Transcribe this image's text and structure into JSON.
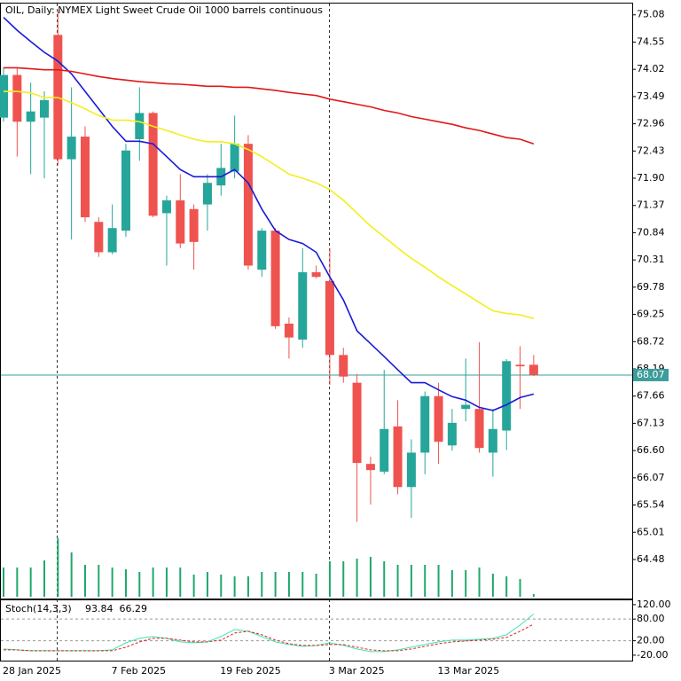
{
  "chart_data": {
    "type": "candlestick",
    "title": "OIL, Daily:  NYMEX Light Sweet Crude Oil 1000 barrels continuous",
    "categories": [
      "28 Jan 2025",
      null,
      null,
      null,
      null,
      null,
      null,
      null,
      "7 Feb 2025",
      null,
      null,
      null,
      null,
      null,
      null,
      null,
      "19 Feb 2025",
      null,
      null,
      null,
      null,
      null,
      null,
      null,
      "3 Mar 2025",
      null,
      null,
      null,
      null,
      null,
      null,
      null,
      "13 Mar 2025",
      null,
      null,
      null,
      null,
      null,
      null,
      null
    ],
    "open": [
      73.08,
      73.91,
      73.0,
      73.08,
      74.69,
      72.27,
      72.71,
      71.05,
      70.46,
      70.88,
      72.66,
      73.17,
      71.22,
      71.47,
      71.3,
      71.39,
      71.76,
      72.03,
      72.57,
      70.12,
      70.88,
      69.07,
      68.76,
      70.07,
      69.9,
      68.46,
      67.92,
      66.34,
      66.19,
      67.07,
      65.89,
      66.56,
      67.66,
      66.7,
      67.41,
      67.41,
      66.56,
      66.99,
      68.27,
      68.27
    ],
    "high": [
      74.06,
      74.05,
      73.76,
      73.59,
      75.16,
      73.67,
      72.91,
      71.14,
      71.39,
      72.57,
      73.67,
      73.2,
      71.56,
      71.98,
      71.39,
      71.98,
      72.57,
      73.12,
      72.74,
      70.93,
      70.93,
      69.19,
      70.54,
      70.2,
      70.54,
      68.6,
      68.09,
      66.48,
      68.17,
      67.58,
      66.82,
      67.75,
      67.92,
      67.41,
      68.39,
      68.71,
      67.41,
      68.38,
      68.63,
      68.46
    ],
    "low": [
      73.0,
      72.32,
      71.98,
      71.9,
      72.15,
      70.71,
      71.05,
      70.37,
      70.42,
      70.76,
      72.24,
      71.14,
      70.2,
      70.54,
      70.12,
      70.88,
      71.56,
      71.9,
      70.12,
      69.98,
      68.97,
      68.39,
      68.6,
      69.95,
      67.88,
      67.92,
      65.21,
      65.55,
      66.14,
      65.75,
      65.29,
      66.14,
      66.34,
      66.6,
      67.17,
      66.56,
      66.09,
      66.61,
      67.41,
      68.05
    ],
    "close": [
      73.91,
      73.0,
      73.2,
      73.42,
      72.27,
      72.71,
      71.14,
      70.46,
      70.93,
      72.44,
      73.17,
      71.17,
      71.47,
      70.63,
      70.66,
      71.81,
      72.1,
      72.57,
      70.2,
      70.88,
      69.02,
      68.8,
      70.07,
      69.98,
      68.46,
      68.04,
      66.36,
      66.22,
      67.02,
      65.89,
      66.56,
      67.66,
      66.77,
      67.14,
      67.49,
      66.65,
      67.02,
      68.34,
      68.24,
      68.07
    ],
    "up_color": "#26a69a",
    "down_color": "#ef5350",
    "last_price_color": "#3c9c9c",
    "ylim": [
      63.72,
      75.3
    ],
    "yticks": [
      75.08,
      74.55,
      74.02,
      73.49,
      72.96,
      72.43,
      {
        "value": 71.9,
        "label": "71.90"
      },
      71.37,
      70.84,
      70.31,
      69.78,
      69.25,
      68.72,
      68.19,
      67.66,
      67.13,
      {
        "value": 66.6,
        "label": "66.60"
      },
      66.07,
      65.54,
      65.01,
      64.48
    ],
    "lines": [
      {
        "color": "#1a1ad8",
        "values": [
          75.03,
          74.78,
          74.56,
          74.35,
          74.18,
          73.93,
          73.59,
          73.25,
          72.91,
          72.62,
          72.62,
          72.57,
          72.32,
          72.07,
          71.93,
          71.93,
          71.93,
          72.07,
          71.81,
          71.3,
          70.88,
          70.71,
          70.63,
          70.46,
          69.98,
          69.53,
          68.93,
          68.68,
          68.43,
          68.17,
          67.92,
          67.92,
          67.78,
          67.65,
          67.58,
          67.44,
          67.38,
          67.49,
          67.63,
          67.7
        ]
      },
      {
        "color": "#f2ef1a",
        "values": [
          73.59,
          73.59,
          73.56,
          73.47,
          73.47,
          73.37,
          73.25,
          73.12,
          73.03,
          73.03,
          73.0,
          72.91,
          72.83,
          72.74,
          72.66,
          72.61,
          72.61,
          72.57,
          72.46,
          72.32,
          72.15,
          71.98,
          71.9,
          71.81,
          71.68,
          71.47,
          71.22,
          70.97,
          70.76,
          70.54,
          70.34,
          70.17,
          69.98,
          69.81,
          69.65,
          69.48,
          69.32,
          69.27,
          69.24,
          69.17
        ]
      },
      {
        "color": "#e01818",
        "values": [
          74.05,
          74.05,
          74.03,
          74.01,
          74.01,
          73.98,
          73.93,
          73.88,
          73.84,
          73.81,
          73.78,
          73.76,
          73.74,
          73.73,
          73.71,
          73.69,
          73.69,
          73.67,
          73.67,
          73.64,
          73.61,
          73.57,
          73.54,
          73.51,
          73.44,
          73.39,
          73.34,
          73.29,
          73.22,
          73.17,
          73.1,
          73.05,
          73.0,
          72.95,
          72.88,
          72.83,
          72.76,
          72.69,
          72.66,
          72.57
        ]
      }
    ],
    "volume": {
      "color": "#1fa86c",
      "ylim": [
        0,
        671
      ],
      "values": [
        33,
        33,
        33,
        41,
        66,
        50,
        36,
        36,
        33,
        31,
        28,
        33,
        33,
        33,
        25,
        28,
        25,
        23,
        23,
        28,
        28,
        28,
        28,
        26,
        40,
        40,
        43,
        45,
        40,
        36,
        36,
        36,
        36,
        30,
        30,
        33,
        26,
        23,
        20,
        3
      ]
    },
    "stoch": {
      "label": "Stoch(14,3,3)",
      "ylim": [
        -35,
        132
      ],
      "yticks": [
        {
          "value": 120,
          "label": "120.00"
        },
        {
          "value": 80,
          "label": "80.00"
        },
        {
          "value": 20,
          "label": "20.00"
        },
        {
          "value": -20,
          "label": "-20.00"
        }
      ],
      "levels": [
        80,
        20
      ],
      "series": [
        {
          "color": "#3ee6b0",
          "dash": false,
          "values": [
            -2.9,
            -5.3,
            -7.8,
            -7.8,
            -7.8,
            -7.8,
            -7.8,
            -7.8,
            -5.3,
            14.3,
            26.6,
            31.5,
            26.6,
            16.8,
            14.3,
            16.8,
            31.5,
            51.2,
            46.3,
            31.5,
            16.8,
            9.4,
            4.5,
            7.0,
            14.3,
            7.0,
            -2.9,
            -10.2,
            -10.2,
            -5.3,
            2.1,
            9.4,
            16.8,
            21.7,
            21.7,
            24.2,
            26.6,
            36.5,
            63.5,
            93.84
          ]
        },
        {
          "color": "#e02020",
          "dash": true,
          "values": [
            -5.3,
            -5.3,
            -7.8,
            -7.8,
            -7.8,
            -7.8,
            -7.8,
            -7.8,
            -7.8,
            2.1,
            16.8,
            26.6,
            26.6,
            21.7,
            16.8,
            16.8,
            21.7,
            41.4,
            46.3,
            36.5,
            21.7,
            11.9,
            7.0,
            7.0,
            9.4,
            9.4,
            2.1,
            -5.3,
            -7.8,
            -7.8,
            -2.9,
            4.5,
            11.9,
            16.8,
            19.2,
            21.7,
            24.2,
            29.1,
            46.3,
            66.29
          ]
        }
      ]
    }
  }
}
